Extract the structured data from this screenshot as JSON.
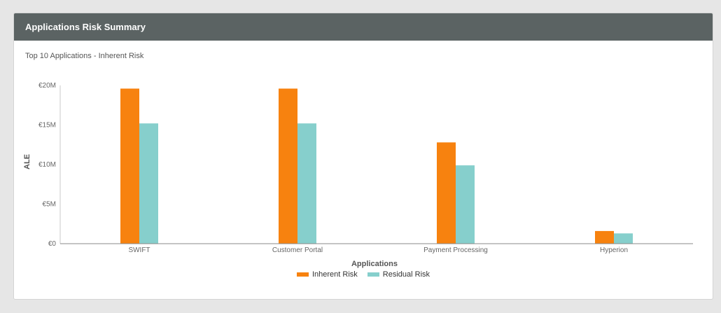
{
  "panel": {
    "title": "Applications Risk Summary",
    "subtitle": "Top 10 Applications - Inherent Risk"
  },
  "chart_data": {
    "type": "bar",
    "categories": [
      "SWIFT",
      "Customer Portal",
      "Payment Processing",
      "Hyperion"
    ],
    "series": [
      {
        "name": "Inherent Risk",
        "color": "#f7820f",
        "values": [
          19.6,
          19.6,
          12.8,
          1.6
        ]
      },
      {
        "name": "Residual Risk",
        "color": "#86cfcc",
        "values": [
          15.2,
          15.2,
          9.9,
          1.3
        ]
      }
    ],
    "xlabel": "Applications",
    "ylabel": "ALE",
    "ylim": [
      0,
      20
    ],
    "yticks": [
      {
        "value": 0,
        "label": "€0"
      },
      {
        "value": 5,
        "label": "€5M"
      },
      {
        "value": 10,
        "label": "€10M"
      },
      {
        "value": 15,
        "label": "€15M"
      },
      {
        "value": 20,
        "label": "€20M"
      }
    ],
    "grid": false,
    "legend_position": "bottom"
  }
}
